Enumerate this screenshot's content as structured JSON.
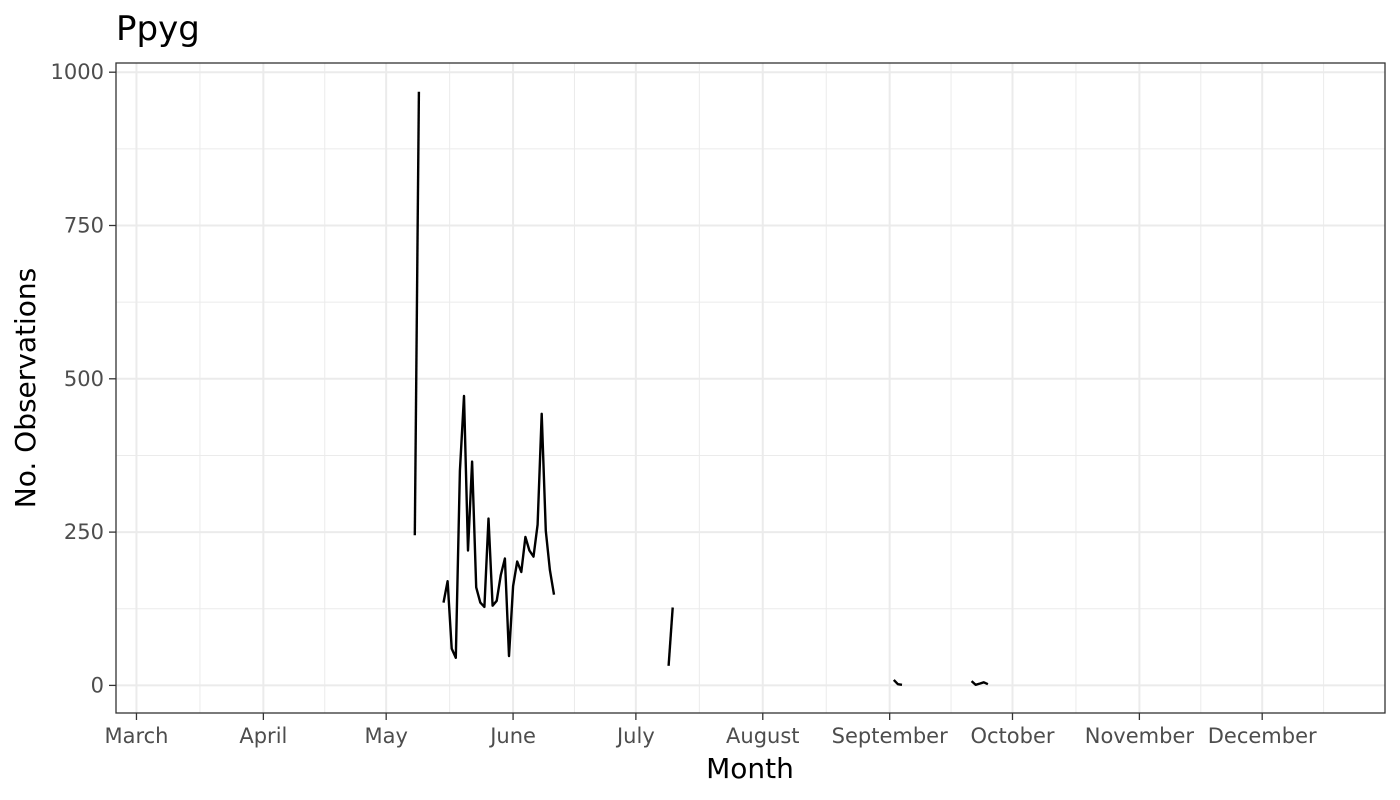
{
  "chart_data": {
    "type": "line",
    "title": "Ppyg",
    "xlabel": "Month",
    "ylabel": "No. Observations",
    "x_unit": "date",
    "xlim": [
      "2020-02-25",
      "2020-12-31"
    ],
    "ylim": [
      -45,
      1015
    ],
    "y_ticks": [
      0,
      250,
      500,
      750,
      1000
    ],
    "y_tick_labels": [
      "0",
      "250",
      "500",
      "750",
      "1000"
    ],
    "x_ticks": [
      "2020-03-01",
      "2020-04-01",
      "2020-05-01",
      "2020-06-01",
      "2020-07-01",
      "2020-08-01",
      "2020-09-01",
      "2020-10-01",
      "2020-11-01",
      "2020-12-01"
    ],
    "x_tick_labels": [
      "March",
      "April",
      "May",
      "June",
      "July",
      "August",
      "September",
      "October",
      "November",
      "December"
    ],
    "grid": true,
    "line_color": "#000000",
    "segments": [
      [
        {
          "x": "2020-05-08",
          "y": 245
        },
        {
          "x": "2020-05-09",
          "y": 968
        }
      ],
      [
        {
          "x": "2020-05-15",
          "y": 135
        },
        {
          "x": "2020-05-16",
          "y": 170
        },
        {
          "x": "2020-05-17",
          "y": 60
        },
        {
          "x": "2020-05-18",
          "y": 45
        },
        {
          "x": "2020-05-19",
          "y": 350
        },
        {
          "x": "2020-05-20",
          "y": 472
        },
        {
          "x": "2020-05-21",
          "y": 220
        },
        {
          "x": "2020-05-22",
          "y": 365
        },
        {
          "x": "2020-05-23",
          "y": 160
        },
        {
          "x": "2020-05-24",
          "y": 135
        },
        {
          "x": "2020-05-25",
          "y": 128
        },
        {
          "x": "2020-05-26",
          "y": 272
        },
        {
          "x": "2020-05-27",
          "y": 130
        },
        {
          "x": "2020-05-28",
          "y": 138
        },
        {
          "x": "2020-05-29",
          "y": 180
        },
        {
          "x": "2020-05-30",
          "y": 207
        },
        {
          "x": "2020-05-31",
          "y": 48
        },
        {
          "x": "2020-06-01",
          "y": 162
        },
        {
          "x": "2020-06-02",
          "y": 202
        },
        {
          "x": "2020-06-03",
          "y": 185
        },
        {
          "x": "2020-06-04",
          "y": 242
        },
        {
          "x": "2020-06-05",
          "y": 220
        },
        {
          "x": "2020-06-06",
          "y": 210
        },
        {
          "x": "2020-06-07",
          "y": 262
        },
        {
          "x": "2020-06-08",
          "y": 443
        },
        {
          "x": "2020-06-09",
          "y": 252
        },
        {
          "x": "2020-06-10",
          "y": 188
        },
        {
          "x": "2020-06-11",
          "y": 148
        }
      ],
      [
        {
          "x": "2020-07-09",
          "y": 32
        },
        {
          "x": "2020-07-10",
          "y": 127
        }
      ],
      [
        {
          "x": "2020-09-02",
          "y": 9
        },
        {
          "x": "2020-09-03",
          "y": 2
        },
        {
          "x": "2020-09-04",
          "y": 1
        }
      ],
      [
        {
          "x": "2020-09-21",
          "y": 7
        },
        {
          "x": "2020-09-22",
          "y": 1
        },
        {
          "x": "2020-09-23",
          "y": 3
        },
        {
          "x": "2020-09-24",
          "y": 5
        },
        {
          "x": "2020-09-25",
          "y": 2
        }
      ]
    ]
  }
}
